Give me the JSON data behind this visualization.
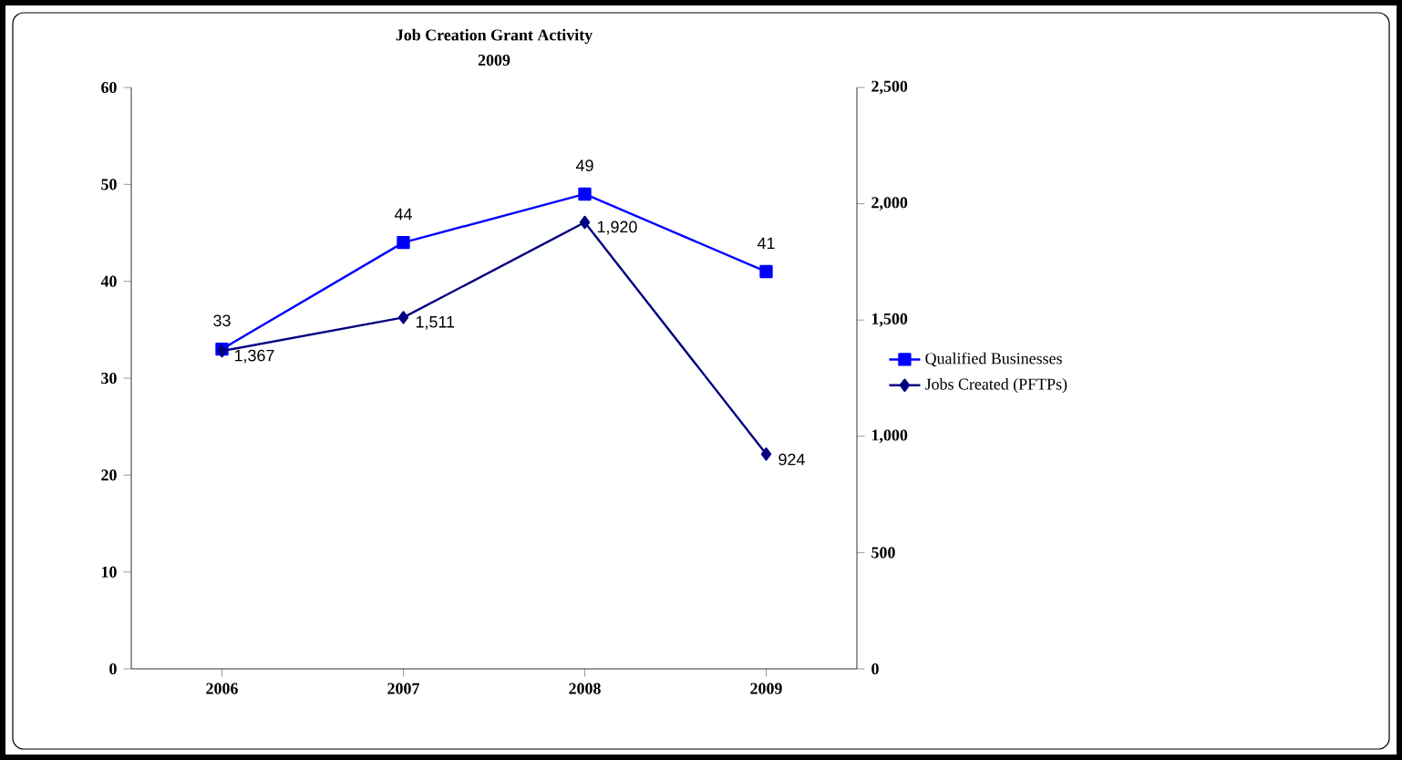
{
  "chart_data": {
    "type": "line",
    "title": "Job Creation Grant Activity",
    "subtitle": "2009",
    "categories": [
      "2006",
      "2007",
      "2008",
      "2009"
    ],
    "series": [
      {
        "name": "Qualified Businesses",
        "color": "#0000ff",
        "marker": "square",
        "values": [
          33,
          44,
          49,
          41
        ],
        "value_labels": [
          "33",
          "44",
          "49",
          "41"
        ]
      },
      {
        "name": "Jobs Created (PFTPs)",
        "color": "#000080",
        "marker": "diamond",
        "axis": "y2",
        "values": [
          1367,
          1511,
          1920,
          924
        ],
        "value_labels": [
          "1,367",
          "1,511",
          "1,920",
          "924"
        ]
      }
    ],
    "ylim": [
      0,
      60
    ],
    "yticks": [
      0,
      10,
      20,
      30,
      40,
      50,
      60
    ],
    "y2lim": [
      0,
      2500
    ],
    "y2ticks": [
      0,
      500,
      {
        "value": 1000,
        "label": "1,000"
      },
      {
        "value": 1500,
        "label": "1,500"
      },
      {
        "value": 2000,
        "label": "2,000"
      },
      {
        "value": 2500,
        "label": "2,500"
      }
    ],
    "legend": "right",
    "grid": false
  }
}
